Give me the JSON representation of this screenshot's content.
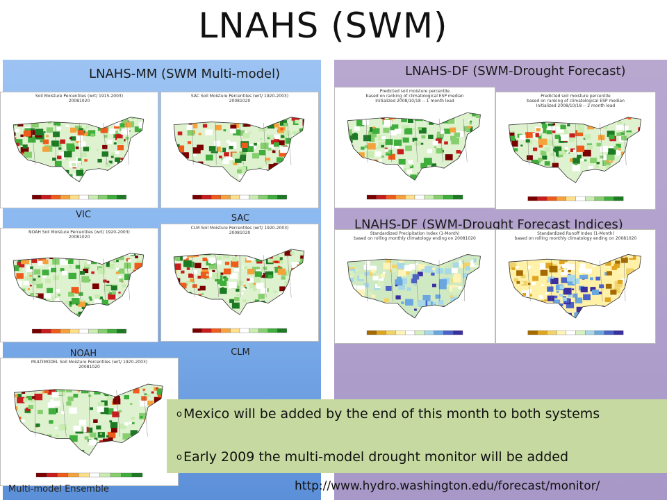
{
  "slide": {
    "title": "LNAHS (SWM)",
    "left_title": "LNAHS-MM (SWM Multi-model)",
    "right_title": "LNAHS-DF (SWM-Drought Forecast)",
    "right_subtitle": "LNAHS-DF (SWM-Drought Forecast Indices)",
    "colors": {
      "left_panel": "#8ab8f0",
      "right_panel": "#a898c8",
      "notes_box": "#c6d9a0"
    }
  },
  "maps": {
    "vic": {
      "label": "VIC",
      "caption": "Soil Moisture Percentiles (wrt/ 1915-2003)\n20081020"
    },
    "sac": {
      "label": "SAC",
      "caption": "SAC Soil Moisture Percentiles (wrt/ 1920-2003)\n20081020"
    },
    "noah": {
      "label": "NOAH",
      "caption": "NOAH Soil Moisture Percentiles (wrt/ 1920-2003)\n20081020"
    },
    "clm": {
      "label": "CLM",
      "caption": "CLM Soil Moisture Percentiles (wrt/ 1920-2003)\n20081020"
    },
    "ensemble": {
      "label": "Multi-model Ensemble",
      "caption": "MULTIMODEL Soil Moisture Percentiles (wrt/ 1920-2003)\n20081020"
    },
    "df1": {
      "caption": "Predicted soil moisture percentile\nbased on ranking of climatological ESP median\nInitialized 2008/10/18 -- 1 month lead"
    },
    "df2": {
      "caption": "Predicted soil moisture percentile\nbased on ranking of climatological ESP median\nInitialized 2008/10/18 -- 2 month lead"
    },
    "spi": {
      "caption": "Standardized Precipitation Index (1-Month)\nbased on rolling monthly climatology ending on 20081020"
    },
    "sri": {
      "caption": "Standardized Runoff Index (1-Month)\nbased on rolling monthly climatology ending on 20081020"
    }
  },
  "notes": [
    "Mexico will be added by the end of this month to both systems",
    "Early 2009 the multi-model drought monitor will be added"
  ],
  "bullet_glyph": "o",
  "url": "http://www.hydro.washington.edu/forecast/monitor/"
}
